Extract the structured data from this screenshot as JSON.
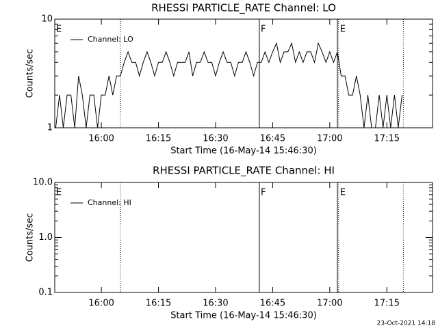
{
  "chart_data": [
    {
      "type": "line",
      "title": "RHESSI PARTICLE_RATE Channel: LO",
      "x_label": "Start Time (16-May-14 15:46:30)",
      "y_label": "Counts/sec",
      "log_y": true,
      "legend": "upper-left",
      "x": [
        "15:48",
        "15:49",
        "15:50",
        "15:51",
        "15:52",
        "15:53",
        "15:54",
        "15:55",
        "15:56",
        "15:57",
        "15:58",
        "15:59",
        "16:00",
        "16:01",
        "16:02",
        "16:03",
        "16:04",
        "16:05",
        "16:06",
        "16:07",
        "16:08",
        "16:09",
        "16:10",
        "16:11",
        "16:12",
        "16:13",
        "16:14",
        "16:15",
        "16:16",
        "16:17",
        "16:18",
        "16:19",
        "16:20",
        "16:21",
        "16:22",
        "16:23",
        "16:24",
        "16:25",
        "16:26",
        "16:27",
        "16:28",
        "16:29",
        "16:30",
        "16:31",
        "16:32",
        "16:33",
        "16:34",
        "16:35",
        "16:36",
        "16:37",
        "16:38",
        "16:39",
        "16:40",
        "16:41",
        "16:42",
        "16:43",
        "16:44",
        "16:45",
        "16:46",
        "16:47",
        "16:48",
        "16:49",
        "16:50",
        "16:51",
        "16:52",
        "16:53",
        "16:54",
        "16:55",
        "16:56",
        "16:57",
        "16:58",
        "16:59",
        "17:00",
        "17:01",
        "17:02",
        "17:03",
        "17:04",
        "17:05",
        "17:06",
        "17:07",
        "17:08",
        "17:09",
        "17:10",
        "17:11",
        "17:12",
        "17:13",
        "17:14",
        "17:15",
        "17:16",
        "17:17",
        "17:18",
        "17:19"
      ],
      "series": [
        {
          "name": "Channel: LO",
          "color": "#000000",
          "values": [
            1,
            2,
            1,
            2,
            2,
            1,
            3,
            2,
            1,
            2,
            2,
            1,
            2,
            2,
            3,
            2,
            3,
            3,
            4,
            5,
            4,
            4,
            3,
            4,
            5,
            4,
            3,
            4,
            4,
            5,
            4,
            3,
            4,
            4,
            4,
            5,
            3,
            4,
            4,
            5,
            4,
            4,
            3,
            4,
            5,
            4,
            4,
            3,
            4,
            4,
            5,
            4,
            3,
            4,
            4,
            5,
            4,
            5,
            6,
            4,
            5,
            5,
            6,
            4,
            5,
            4,
            5,
            5,
            4,
            6,
            5,
            4,
            5,
            4,
            5,
            3,
            3,
            2,
            2,
            3,
            2,
            1,
            2,
            1,
            1,
            2,
            1,
            2,
            1,
            2,
            1,
            2
          ]
        }
      ],
      "xlim": [
        "15:47:45",
        "17:27:00"
      ],
      "xticks": [
        "16:00",
        "16:15",
        "16:30",
        "16:45",
        "17:00",
        "17:15"
      ],
      "ylim": [
        1,
        10
      ],
      "yticks": [
        1,
        10
      ],
      "events": [
        {
          "time": "15:47:45",
          "label": "E",
          "line": "none"
        },
        {
          "time": "16:05:00",
          "line": "dotted"
        },
        {
          "time": "16:41:30",
          "label": "F",
          "line": "solid"
        },
        {
          "time": "17:02:00",
          "line": "solid"
        },
        {
          "time": "17:02:20",
          "label": "E",
          "line": "dotted"
        },
        {
          "time": "17:19:20",
          "line": "dotted"
        }
      ]
    },
    {
      "type": "line",
      "title": "RHESSI PARTICLE_RATE Channel: HI",
      "x_label": "Start Time (16-May-14 15:46:30)",
      "y_label": "Counts/sec",
      "log_y": true,
      "legend": "upper-left",
      "x": [],
      "series": [
        {
          "name": "Channel: HI",
          "color": "#000000",
          "values": []
        }
      ],
      "xlim": [
        "15:47:45",
        "17:27:00"
      ],
      "xticks": [
        "16:00",
        "16:15",
        "16:30",
        "16:45",
        "17:00",
        "17:15"
      ],
      "ylim": [
        0.1,
        10
      ],
      "yticks": [
        0.1,
        {
          "value": 1,
          "label": "1.0"
        },
        {
          "value": 10,
          "label": "10.0"
        }
      ],
      "events": [
        {
          "time": "15:47:45",
          "label": "E",
          "line": "none"
        },
        {
          "time": "16:05:00",
          "line": "dotted"
        },
        {
          "time": "16:41:30",
          "label": "F",
          "line": "solid"
        },
        {
          "time": "17:02:00",
          "line": "solid"
        },
        {
          "time": "17:02:20",
          "label": "E",
          "line": "dotted"
        },
        {
          "time": "17:19:20",
          "line": "dotted"
        }
      ]
    }
  ],
  "footer": "23-Oct-2021 14:18"
}
